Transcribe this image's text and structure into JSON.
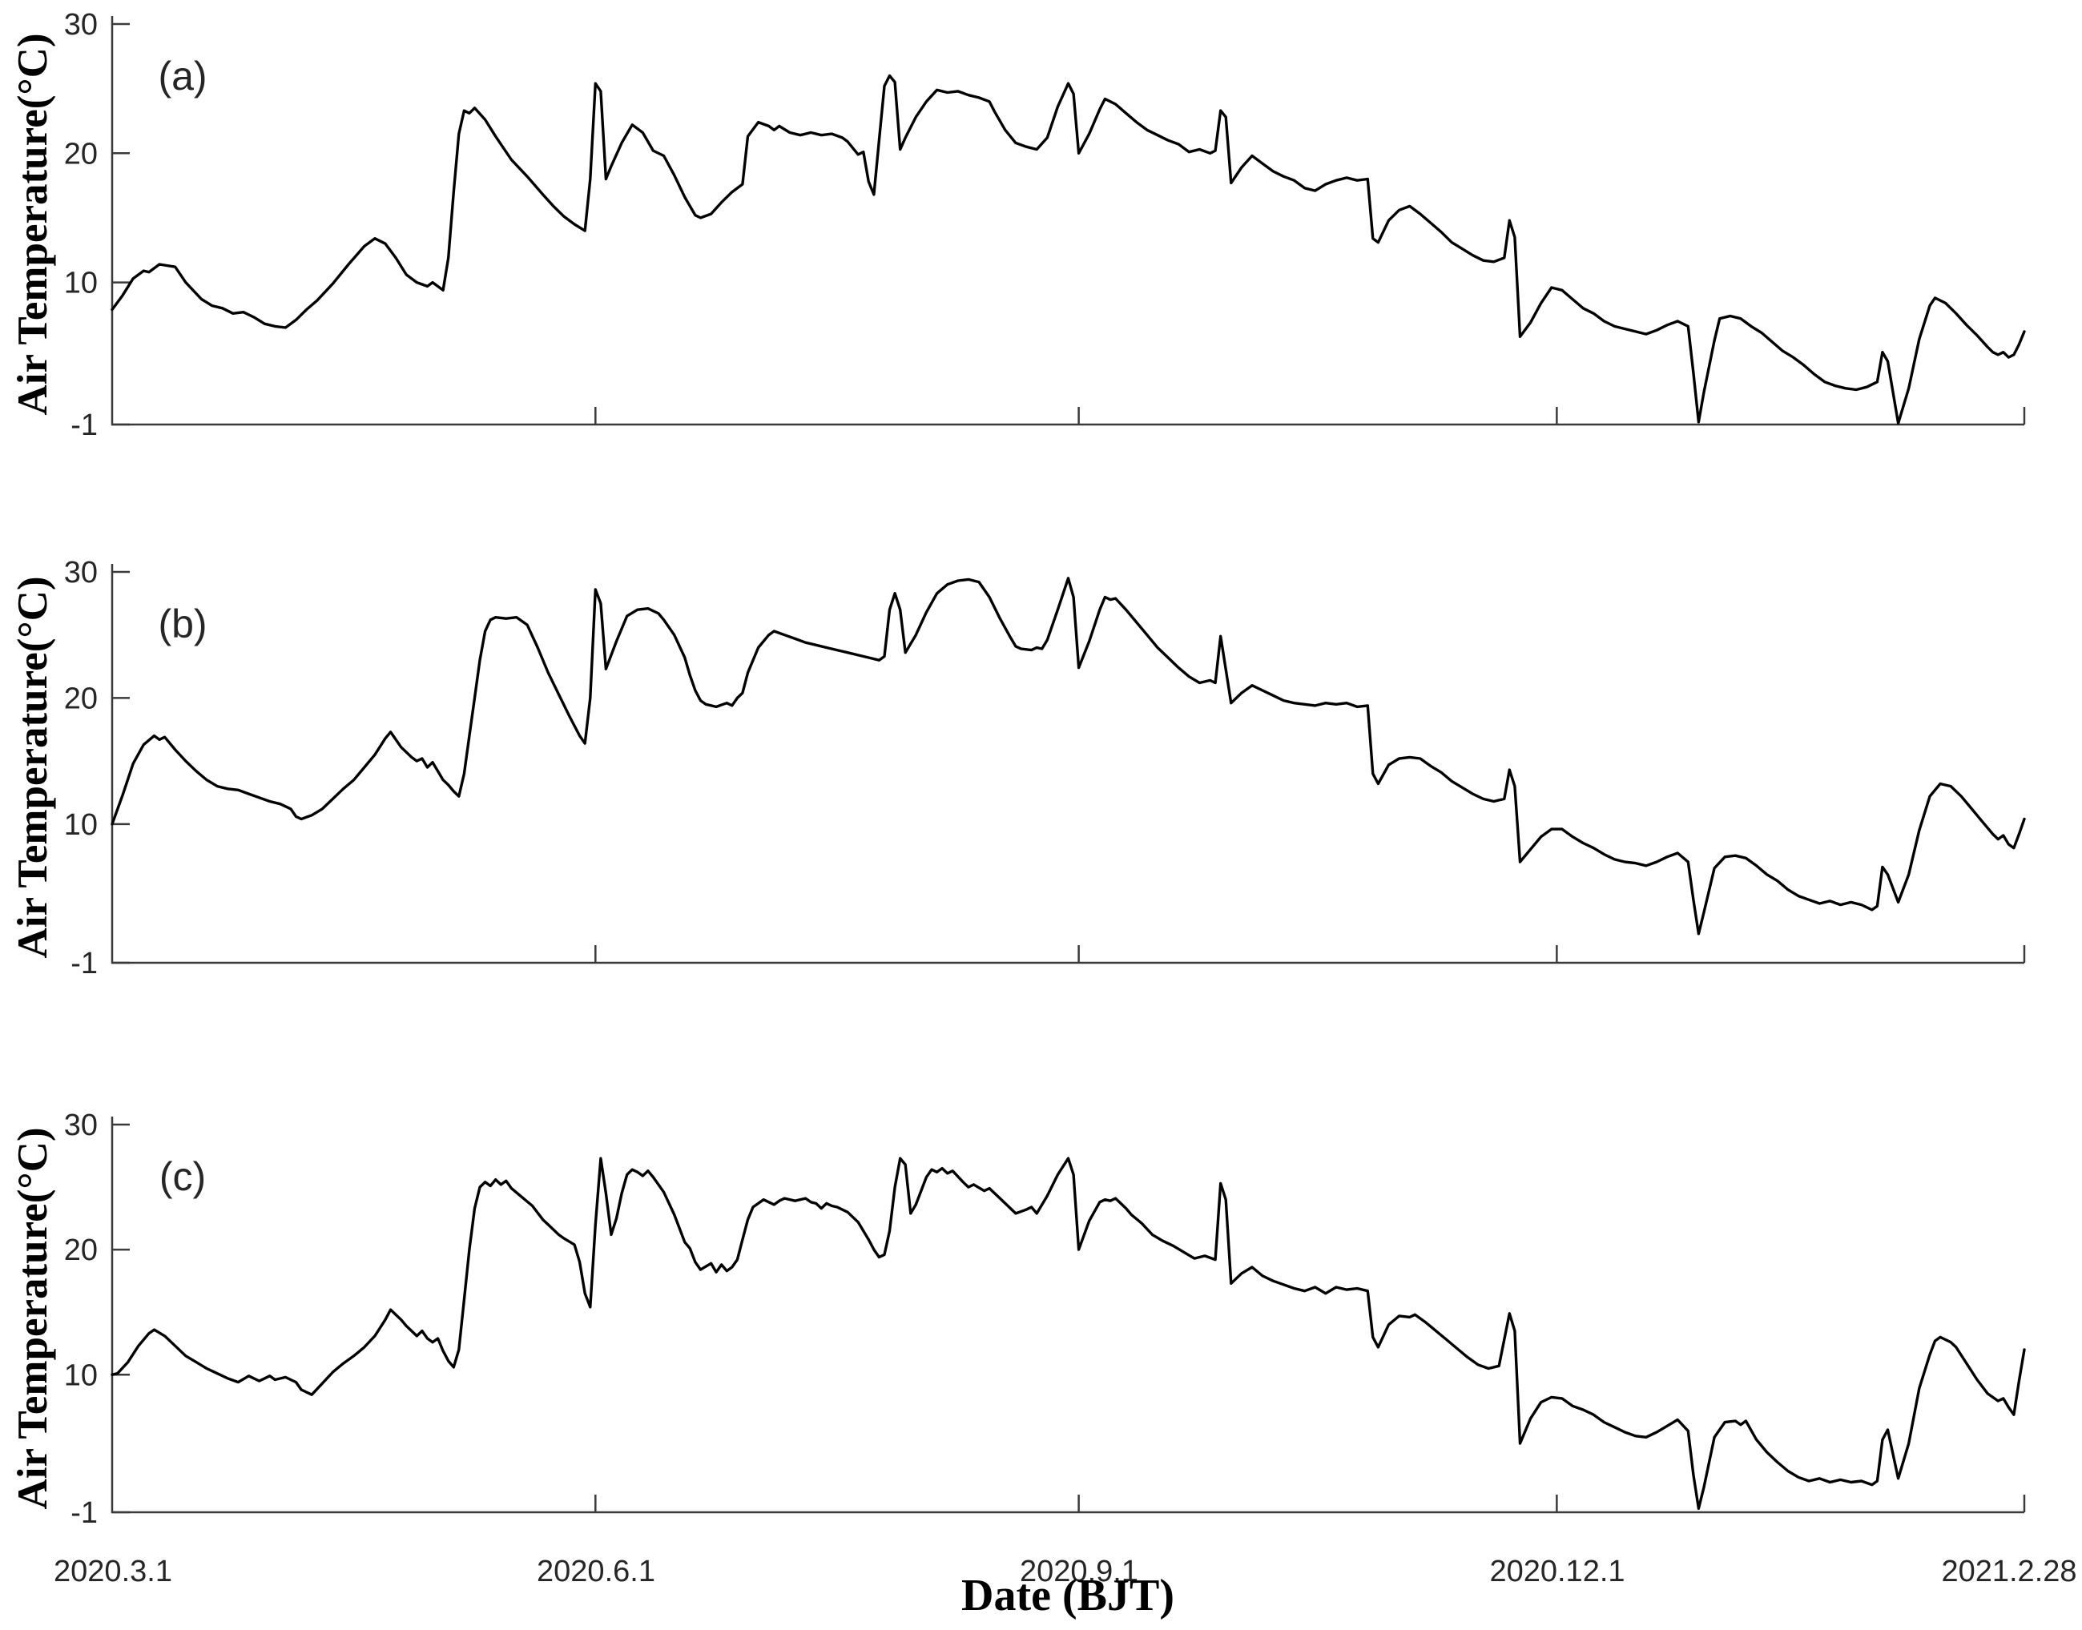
{
  "figure": {
    "xlabel": "Date (BJT)",
    "ylabel": "Air Temperature(°C)",
    "x_tick_labels": [
      "2020.3.1",
      "2020.6.1",
      "2020.9.1",
      "2020.12.1",
      "2021.2.28"
    ],
    "x_tick_days": [
      0,
      92,
      184,
      275,
      364
    ],
    "y_ticks": [
      30,
      20,
      10,
      -1
    ],
    "colors": {
      "line": "#000000",
      "axis": "#3a3a3a",
      "text": "#262626"
    }
  },
  "chart_data": [
    {
      "type": "line",
      "panel_label": "(a)",
      "title": "",
      "xlabel": "Date (BJT)",
      "ylabel": "Air Temperature(°C)",
      "xlim_days": [
        0,
        364
      ],
      "ylim": [
        -1,
        30
      ],
      "x": [
        0,
        2,
        4,
        6,
        7,
        9,
        12,
        14,
        17,
        19,
        21,
        23,
        25,
        27,
        29,
        31,
        33,
        35,
        37,
        39,
        42,
        45,
        48,
        50,
        52,
        54,
        56,
        58,
        60,
        61,
        63,
        64,
        65,
        66,
        67,
        68,
        69,
        71,
        73,
        76,
        79,
        82,
        84,
        86,
        88,
        90,
        91,
        92,
        93,
        94,
        95,
        97,
        99,
        101,
        103,
        105,
        107,
        109,
        111,
        112,
        114,
        116,
        118,
        120,
        121,
        123,
        125,
        126,
        127,
        129,
        131,
        133,
        135,
        137,
        139,
        140,
        142,
        143,
        144,
        145,
        146,
        147,
        148,
        149,
        150,
        151,
        153,
        155,
        157,
        159,
        161,
        163,
        165,
        167,
        168,
        170,
        172,
        174,
        176,
        178,
        180,
        182,
        183,
        184,
        186,
        188,
        189,
        191,
        193,
        195,
        197,
        199,
        201,
        203,
        205,
        207,
        209,
        210,
        211,
        212,
        213,
        215,
        217,
        219,
        221,
        223,
        225,
        227,
        229,
        231,
        233,
        235,
        237,
        239,
        240,
        241,
        243,
        245,
        247,
        249,
        251,
        253,
        255,
        257,
        259,
        261,
        263,
        265,
        266,
        267,
        268,
        270,
        272,
        274,
        276,
        278,
        280,
        282,
        284,
        286,
        288,
        290,
        292,
        294,
        296,
        298,
        300,
        301,
        302,
        303,
        305,
        306,
        308,
        310,
        312,
        314,
        316,
        318,
        320,
        322,
        324,
        326,
        328,
        330,
        332,
        334,
        336,
        337,
        338,
        340,
        342,
        344,
        346,
        347,
        349,
        351,
        353,
        355,
        357,
        358,
        359,
        360,
        361,
        362,
        363,
        364
      ],
      "y": [
        7.9,
        9.0,
        10.3,
        10.9,
        10.8,
        11.4,
        11.2,
        10.0,
        8.7,
        8.2,
        8.0,
        7.6,
        7.7,
        7.3,
        6.8,
        6.6,
        6.5,
        7.1,
        7.9,
        8.6,
        9.9,
        11.4,
        12.8,
        13.4,
        13.0,
        11.9,
        10.6,
        10.0,
        9.7,
        10.0,
        9.4,
        11.9,
        17.0,
        21.5,
        23.3,
        23.1,
        23.5,
        22.6,
        21.3,
        19.5,
        18.2,
        16.8,
        15.9,
        15.1,
        14.5,
        14.0,
        18.0,
        25.4,
        24.8,
        18.0,
        19.0,
        20.8,
        22.2,
        21.6,
        20.2,
        19.8,
        18.3,
        16.6,
        15.2,
        15.0,
        15.3,
        16.2,
        17.0,
        17.6,
        21.3,
        22.4,
        22.1,
        21.8,
        22.1,
        21.6,
        21.4,
        21.6,
        21.4,
        21.5,
        21.2,
        20.9,
        19.9,
        20.1,
        17.8,
        16.8,
        21.0,
        25.2,
        26.0,
        25.5,
        20.3,
        21.2,
        22.8,
        24.0,
        24.9,
        24.7,
        24.8,
        24.5,
        24.3,
        24.0,
        23.2,
        21.8,
        20.8,
        20.5,
        20.3,
        21.2,
        23.6,
        25.4,
        24.6,
        20.0,
        21.5,
        23.4,
        24.2,
        23.8,
        23.1,
        22.4,
        21.8,
        21.4,
        21.0,
        20.7,
        20.1,
        20.3,
        20.0,
        20.2,
        23.3,
        22.8,
        17.7,
        18.9,
        19.8,
        19.2,
        18.6,
        18.2,
        17.9,
        17.3,
        17.1,
        17.6,
        17.9,
        18.1,
        17.9,
        18.0,
        13.4,
        13.1,
        14.8,
        15.6,
        15.9,
        15.3,
        14.6,
        13.9,
        13.1,
        12.6,
        12.1,
        11.7,
        11.6,
        11.9,
        14.8,
        13.5,
        5.8,
        6.9,
        8.4,
        9.6,
        9.4,
        8.7,
        8.0,
        7.6,
        7.0,
        6.6,
        6.4,
        6.2,
        6.0,
        6.3,
        6.7,
        7.0,
        6.6,
        3.0,
        -0.8,
        1.5,
        5.5,
        7.2,
        7.4,
        7.2,
        6.6,
        6.1,
        5.4,
        4.7,
        4.2,
        3.6,
        2.9,
        2.3,
        2.0,
        1.8,
        1.7,
        1.9,
        2.3,
        4.6,
        3.9,
        -0.9,
        1.8,
        5.6,
        8.2,
        8.8,
        8.4,
        7.6,
        6.7,
        5.9,
        5.0,
        4.6,
        4.4,
        4.6,
        4.2,
        4.4,
        5.2,
        6.2
      ]
    },
    {
      "type": "line",
      "panel_label": "(b)",
      "title": "",
      "xlabel": "Date (BJT)",
      "ylabel": "Air Temperature(°C)",
      "xlim_days": [
        0,
        364
      ],
      "ylim": [
        -1,
        30
      ],
      "x": [
        0,
        2,
        4,
        6,
        8,
        9,
        10,
        12,
        14,
        16,
        18,
        20,
        22,
        24,
        26,
        28,
        30,
        32,
        34,
        35,
        36,
        38,
        40,
        42,
        44,
        46,
        48,
        50,
        52,
        53,
        55,
        57,
        58,
        59,
        60,
        61,
        62,
        63,
        64,
        65,
        66,
        67,
        68,
        69,
        70,
        71,
        72,
        73,
        75,
        77,
        79,
        81,
        83,
        85,
        87,
        89,
        90,
        91,
        92,
        93,
        94,
        96,
        98,
        100,
        102,
        104,
        105,
        107,
        109,
        110,
        111,
        112,
        113,
        115,
        117,
        118,
        119,
        120,
        121,
        123,
        125,
        126,
        128,
        130,
        132,
        134,
        136,
        138,
        140,
        142,
        144,
        146,
        147,
        148,
        149,
        150,
        151,
        153,
        155,
        157,
        159,
        161,
        163,
        165,
        167,
        169,
        171,
        172,
        173,
        175,
        176,
        177,
        178,
        180,
        182,
        183,
        184,
        186,
        188,
        189,
        190,
        191,
        193,
        195,
        197,
        199,
        201,
        203,
        205,
        207,
        209,
        210,
        211,
        213,
        215,
        217,
        219,
        221,
        223,
        225,
        227,
        229,
        231,
        233,
        235,
        237,
        239,
        240,
        241,
        243,
        245,
        247,
        249,
        251,
        253,
        255,
        257,
        259,
        261,
        263,
        265,
        266,
        267,
        268,
        270,
        272,
        274,
        276,
        278,
        280,
        282,
        284,
        286,
        288,
        290,
        292,
        294,
        296,
        298,
        300,
        301,
        302,
        303,
        305,
        307,
        309,
        311,
        313,
        315,
        317,
        319,
        321,
        323,
        325,
        327,
        329,
        331,
        333,
        335,
        336,
        337,
        338,
        340,
        342,
        344,
        346,
        348,
        350,
        352,
        354,
        356,
        358,
        359,
        360,
        361,
        362,
        363,
        364
      ],
      "y": [
        10.0,
        12.3,
        14.8,
        16.3,
        17.0,
        16.7,
        16.9,
        15.9,
        15.0,
        14.2,
        13.5,
        13.0,
        12.8,
        12.7,
        12.4,
        12.1,
        11.8,
        11.6,
        11.2,
        10.6,
        10.4,
        10.7,
        11.2,
        12.0,
        12.8,
        13.5,
        14.5,
        15.5,
        16.8,
        17.3,
        16.1,
        15.3,
        15.0,
        15.2,
        14.5,
        14.9,
        14.2,
        13.5,
        13.1,
        12.6,
        12.2,
        14.0,
        17.0,
        20.0,
        23.0,
        25.3,
        26.2,
        26.4,
        26.3,
        26.4,
        25.8,
        24.0,
        22.0,
        20.3,
        18.6,
        17.0,
        16.4,
        20.0,
        28.6,
        27.5,
        22.3,
        24.5,
        26.5,
        27.0,
        27.1,
        26.7,
        26.2,
        25.0,
        23.2,
        21.8,
        20.6,
        19.8,
        19.5,
        19.3,
        19.6,
        19.4,
        20.0,
        20.4,
        22.0,
        24.0,
        25.0,
        25.3,
        25.0,
        24.7,
        24.4,
        24.2,
        24.0,
        23.8,
        23.6,
        23.4,
        23.2,
        23.0,
        23.3,
        27.0,
        28.3,
        27.0,
        23.6,
        25.0,
        26.8,
        28.3,
        29.0,
        29.3,
        29.4,
        29.2,
        28.0,
        26.3,
        24.8,
        24.1,
        23.9,
        23.8,
        24.0,
        23.9,
        24.6,
        27.0,
        29.5,
        28.0,
        22.4,
        24.5,
        27.0,
        28.0,
        27.8,
        27.9,
        27.0,
        26.0,
        25.0,
        24.0,
        23.2,
        22.4,
        21.7,
        21.2,
        21.4,
        21.2,
        24.9,
        19.6,
        20.4,
        21.0,
        20.6,
        20.2,
        19.8,
        19.6,
        19.5,
        19.4,
        19.6,
        19.5,
        19.6,
        19.3,
        19.4,
        14.0,
        13.2,
        14.7,
        15.2,
        15.3,
        15.2,
        14.6,
        14.1,
        13.4,
        12.9,
        12.4,
        12.0,
        11.8,
        12.0,
        14.3,
        13.0,
        7.0,
        8.0,
        9.0,
        9.6,
        9.6,
        9.0,
        8.5,
        8.1,
        7.6,
        7.2,
        7.0,
        6.9,
        6.7,
        7.0,
        7.4,
        7.7,
        7.0,
        4.0,
        1.3,
        3.0,
        6.5,
        7.4,
        7.5,
        7.3,
        6.7,
        6.0,
        5.5,
        4.8,
        4.3,
        4.0,
        3.7,
        3.9,
        3.6,
        3.8,
        3.6,
        3.2,
        3.5,
        6.6,
        6.0,
        3.8,
        6.0,
        9.5,
        12.2,
        13.2,
        13.0,
        12.2,
        11.2,
        10.2,
        9.2,
        8.8,
        9.1,
        8.4,
        8.1,
        9.2,
        10.4
      ]
    },
    {
      "type": "line",
      "panel_label": "(c)",
      "title": "",
      "xlabel": "Date (BJT)",
      "ylabel": "Air Temperature(°C)",
      "xlim_days": [
        0,
        364
      ],
      "ylim": [
        -1,
        30
      ],
      "x": [
        0,
        1,
        3,
        5,
        7,
        8,
        10,
        12,
        14,
        16,
        18,
        20,
        22,
        24,
        26,
        28,
        30,
        31,
        33,
        35,
        36,
        38,
        40,
        42,
        44,
        46,
        48,
        50,
        52,
        53,
        55,
        56,
        57,
        58,
        59,
        60,
        61,
        62,
        63,
        64,
        65,
        66,
        67,
        68,
        69,
        70,
        71,
        72,
        73,
        74,
        75,
        76,
        78,
        80,
        82,
        83,
        85,
        86,
        88,
        89,
        90,
        91,
        92,
        93,
        94,
        95,
        96,
        97,
        98,
        99,
        100,
        101,
        102,
        103,
        105,
        107,
        109,
        110,
        111,
        112,
        114,
        115,
        116,
        117,
        118,
        119,
        120,
        121,
        122,
        124,
        125,
        126,
        127,
        128,
        130,
        132,
        133,
        134,
        135,
        136,
        137,
        138,
        140,
        142,
        144,
        145,
        146,
        147,
        148,
        149,
        150,
        151,
        152,
        153,
        155,
        156,
        157,
        158,
        159,
        160,
        162,
        163,
        164,
        166,
        167,
        169,
        171,
        172,
        174,
        175,
        176,
        178,
        180,
        182,
        183,
        184,
        186,
        188,
        189,
        190,
        191,
        193,
        194,
        196,
        198,
        200,
        202,
        204,
        206,
        208,
        210,
        211,
        212,
        213,
        215,
        217,
        219,
        221,
        223,
        225,
        227,
        229,
        231,
        233,
        235,
        237,
        239,
        240,
        241,
        243,
        245,
        247,
        248,
        250,
        252,
        254,
        256,
        258,
        260,
        262,
        264,
        266,
        267,
        268,
        270,
        272,
        274,
        276,
        278,
        280,
        282,
        284,
        286,
        288,
        290,
        292,
        294,
        296,
        298,
        300,
        301,
        302,
        303,
        305,
        307,
        309,
        310,
        311,
        313,
        315,
        317,
        319,
        321,
        323,
        325,
        327,
        329,
        331,
        333,
        335,
        336,
        337,
        338,
        340,
        342,
        344,
        346,
        347,
        348,
        350,
        351,
        353,
        355,
        357,
        359,
        360,
        361,
        362,
        363,
        364
      ],
      "y": [
        10.0,
        10.1,
        11.0,
        12.3,
        13.3,
        13.6,
        13.1,
        12.3,
        11.5,
        11.0,
        10.5,
        10.1,
        9.7,
        9.4,
        9.9,
        9.5,
        9.9,
        9.6,
        9.8,
        9.4,
        8.8,
        8.4,
        9.3,
        10.2,
        10.9,
        11.5,
        12.2,
        13.1,
        14.4,
        15.2,
        14.4,
        13.9,
        13.5,
        13.1,
        13.5,
        12.9,
        12.6,
        12.9,
        11.9,
        11.1,
        10.6,
        12.0,
        16.0,
        20.0,
        23.3,
        25.0,
        25.4,
        25.1,
        25.6,
        25.2,
        25.5,
        24.9,
        24.2,
        23.5,
        22.4,
        22.0,
        21.2,
        20.9,
        20.4,
        19.0,
        16.5,
        15.4,
        22.0,
        27.3,
        24.5,
        21.2,
        22.5,
        24.5,
        26.0,
        26.4,
        26.2,
        25.9,
        26.3,
        25.8,
        24.6,
        22.8,
        20.6,
        20.1,
        19.0,
        18.4,
        18.9,
        18.2,
        18.8,
        18.3,
        18.6,
        19.2,
        20.8,
        22.4,
        23.4,
        24.0,
        23.8,
        23.6,
        23.9,
        24.1,
        23.9,
        24.1,
        23.8,
        23.7,
        23.3,
        23.7,
        23.5,
        23.4,
        23.0,
        22.2,
        20.8,
        20.0,
        19.4,
        19.6,
        21.5,
        25.0,
        27.3,
        26.8,
        22.9,
        23.6,
        25.8,
        26.4,
        26.2,
        26.5,
        26.1,
        26.3,
        25.4,
        25.0,
        25.2,
        24.7,
        24.9,
        24.1,
        23.3,
        22.9,
        23.2,
        23.4,
        22.9,
        24.3,
        26.0,
        27.3,
        26.0,
        20.0,
        22.3,
        23.8,
        24.0,
        23.9,
        24.1,
        23.3,
        22.8,
        22.1,
        21.2,
        20.7,
        20.3,
        19.8,
        19.3,
        19.5,
        19.2,
        25.3,
        24.0,
        17.3,
        18.1,
        18.6,
        17.9,
        17.5,
        17.2,
        16.9,
        16.7,
        17.0,
        16.5,
        17.0,
        16.8,
        16.9,
        16.7,
        13.0,
        12.2,
        14.0,
        14.7,
        14.6,
        14.8,
        14.2,
        13.5,
        12.8,
        12.1,
        11.4,
        10.8,
        10.5,
        10.7,
        14.9,
        13.5,
        4.5,
        6.5,
        7.8,
        8.2,
        8.1,
        7.5,
        7.2,
        6.8,
        6.2,
        5.8,
        5.4,
        5.1,
        5.0,
        5.4,
        5.9,
        6.4,
        5.5,
        2.0,
        -0.7,
        1.0,
        5.0,
        6.2,
        6.3,
        6.0,
        6.3,
        4.8,
        3.8,
        3.0,
        2.3,
        1.8,
        1.5,
        1.7,
        1.4,
        1.6,
        1.4,
        1.5,
        1.2,
        1.5,
        4.8,
        5.6,
        1.7,
        4.5,
        8.9,
        11.6,
        12.7,
        13.0,
        12.6,
        12.2,
        10.9,
        9.6,
        8.5,
        7.9,
        8.1,
        7.4,
        6.8,
        9.5,
        12.0
      ]
    }
  ]
}
